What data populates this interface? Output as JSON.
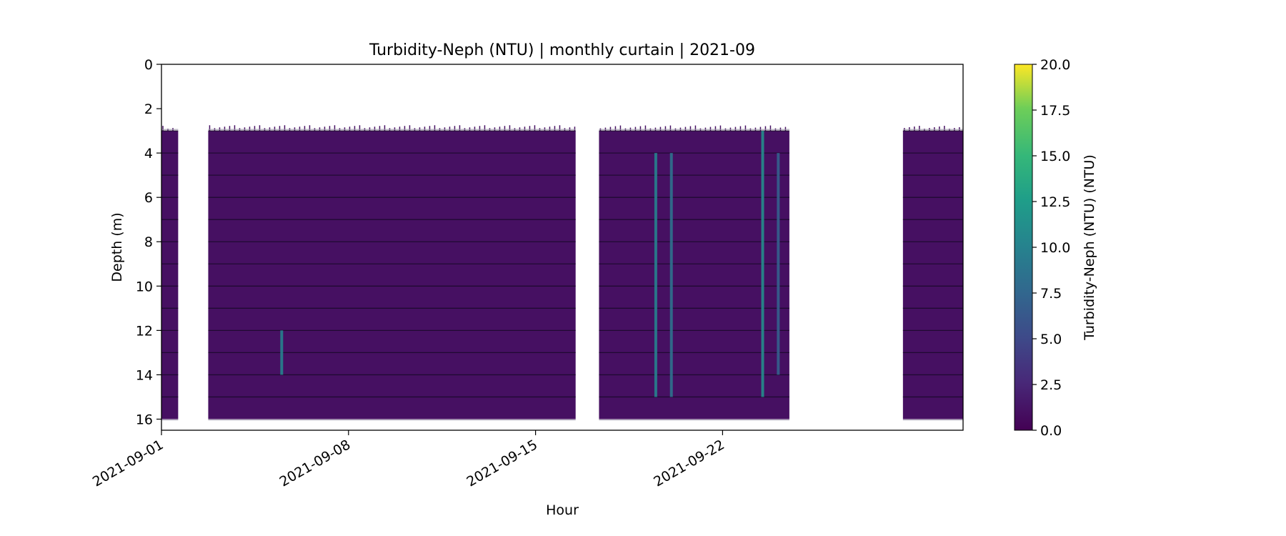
{
  "chart_data": {
    "type": "heatmap",
    "title": "Turbidity-Neph (NTU) | monthly curtain | 2021-09",
    "xlabel": "Hour",
    "ylabel": "Depth (m)",
    "x_ticks": [
      "2021-09-01",
      "2021-09-08",
      "2021-09-15",
      "2021-09-22"
    ],
    "x_range": [
      "2021-09-01",
      "2021-10-01"
    ],
    "y_ticks": [
      "0",
      "2",
      "4",
      "6",
      "8",
      "10",
      "12",
      "14",
      "16"
    ],
    "y_range": [
      0,
      16.5
    ],
    "y_inverted": true,
    "colorbar": {
      "label": "Turbidity-Neph (NTU) (NTU)",
      "ticks": [
        "0.0",
        "2.5",
        "5.0",
        "7.5",
        "10.0",
        "12.5",
        "15.0",
        "17.5",
        "20.0"
      ],
      "range": [
        0,
        20
      ],
      "colormap": "viridis"
    },
    "data_segments": [
      {
        "start": "2021-09-01 00:00",
        "end": "2021-09-01 15:00",
        "top_depth": 3.0,
        "bottom_depth": 16.0
      },
      {
        "start": "2021-09-02 18:00",
        "end": "2021-09-16 12:00",
        "top_depth": 3.0,
        "bottom_depth": 16.0
      },
      {
        "start": "2021-09-17 09:00",
        "end": "2021-09-24 12:00",
        "top_depth": 3.0,
        "bottom_depth": 16.0
      },
      {
        "start": "2021-09-28 18:00",
        "end": "2021-10-01 00:00",
        "top_depth": 3.0,
        "bottom_depth": 16.0
      }
    ],
    "typical_value": 1.0,
    "sensor_depths": [
      3,
      4,
      5,
      6,
      7,
      8,
      9,
      10,
      11,
      12,
      13,
      14,
      15
    ],
    "elevated_readings": [
      {
        "time": "2021-09-05 12:00",
        "depth_range": [
          12.0,
          14.0
        ],
        "value": 10.0
      },
      {
        "time": "2021-09-19 12:00",
        "depth_range": [
          4.0,
          15.0
        ],
        "value": 10.0
      },
      {
        "time": "2021-09-20 02:00",
        "depth_range": [
          4.0,
          15.0
        ],
        "value": 8.5
      },
      {
        "time": "2021-09-23 12:00",
        "depth_range": [
          3.0,
          15.0
        ],
        "value": 11.0
      },
      {
        "time": "2021-09-24 02:00",
        "depth_range": [
          4.0,
          14.0
        ],
        "value": 7.0
      }
    ]
  }
}
